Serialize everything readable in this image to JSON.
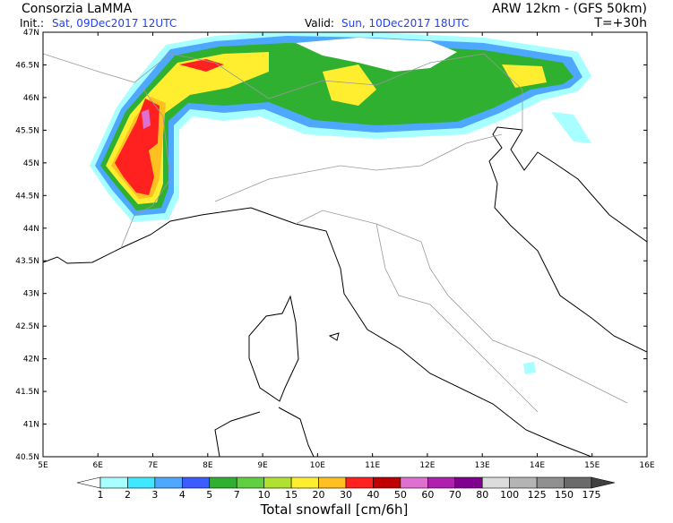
{
  "header": {
    "left_title": "Consorzia LaMMA",
    "right_title": "ARW 12km - (GFS 50km)",
    "init_label": "Init.:",
    "init_value": "Sat, 09Dec2017 12UTC",
    "valid_label": "Valid:",
    "valid_value": "Sun, 10Dec2017 18UTC",
    "lead_time": "T=+30h"
  },
  "map": {
    "lat_labels": [
      "47N",
      "46.5N",
      "46N",
      "45.5N",
      "45N",
      "44.5N",
      "44N",
      "43.5N",
      "43N",
      "42.5N",
      "42N",
      "41.5N",
      "41N",
      "40.5N"
    ],
    "lon_labels": [
      "5E",
      "6E",
      "7E",
      "8E",
      "9E",
      "10E",
      "11E",
      "12E",
      "13E",
      "14E",
      "15E",
      "16E"
    ]
  },
  "colorbar": {
    "title": "Total snowfall [cm/6h]",
    "labels": [
      "1",
      "2",
      "3",
      "4",
      "5",
      "7",
      "10",
      "15",
      "20",
      "30",
      "40",
      "50",
      "60",
      "70",
      "80",
      "100",
      "125",
      "150",
      "175"
    ],
    "colors": [
      "#ffffff",
      "#a8ffff",
      "#40e8ff",
      "#4fa8ff",
      "#3c5cff",
      "#30b030",
      "#60d040",
      "#b0e030",
      "#ffee30",
      "#ffc020",
      "#ff2020",
      "#c00000",
      "#e070d0",
      "#b020b0",
      "#800090",
      "#dcdcdc",
      "#b4b4b4",
      "#909090",
      "#6a6a6a",
      "#404040"
    ]
  }
}
